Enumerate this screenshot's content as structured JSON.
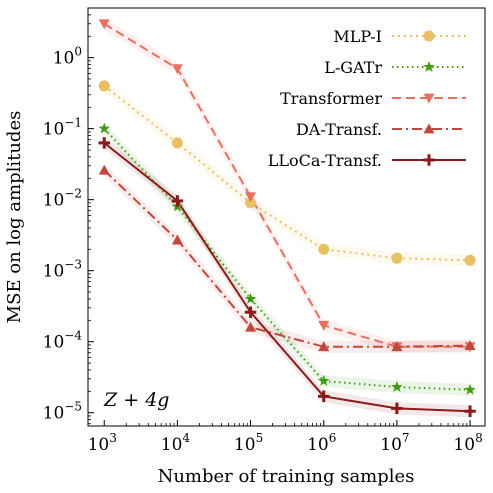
{
  "chart_data": {
    "type": "line",
    "xscale": "log",
    "yscale": "log",
    "x": [
      1000,
      10000,
      100000,
      1000000,
      10000000,
      100000000
    ],
    "x_ticks": [
      {
        "value": 1000,
        "base": "10",
        "exp": "3"
      },
      {
        "value": 10000,
        "base": "10",
        "exp": "4"
      },
      {
        "value": 100000,
        "base": "10",
        "exp": "5"
      },
      {
        "value": 1000000,
        "base": "10",
        "exp": "6"
      },
      {
        "value": 10000000,
        "base": "10",
        "exp": "7"
      },
      {
        "value": 100000000,
        "base": "10",
        "exp": "8"
      }
    ],
    "y_ticks": [
      {
        "value": 1,
        "base": "10",
        "exp": "0"
      },
      {
        "value": 0.1,
        "base": "10",
        "exp": "−1"
      },
      {
        "value": 0.01,
        "base": "10",
        "exp": "−2"
      },
      {
        "value": 0.001,
        "base": "10",
        "exp": "−3"
      },
      {
        "value": 0.0001,
        "base": "10",
        "exp": "−4"
      },
      {
        "value": 1e-05,
        "base": "10",
        "exp": "−5"
      }
    ],
    "xlim": [
      600,
      160000000
    ],
    "ylim": [
      6.5e-06,
      5
    ],
    "xlabel": "Number of training samples",
    "ylabel": "MSE on log amplitudes",
    "annotation": "Z + 4g",
    "legend_position": "top-right",
    "series": [
      {
        "name": "MLP-I",
        "color": "#e8c063",
        "dash": "2,4",
        "marker": "circle",
        "values": [
          0.4,
          0.063,
          0.009,
          0.002,
          0.0015,
          0.0014
        ]
      },
      {
        "name": "L-GATr",
        "color": "#3f9913",
        "dash": "1.5,3.5",
        "marker": "star",
        "values": [
          0.1,
          0.008,
          0.0004,
          2.8e-05,
          2.3e-05,
          2.1e-05
        ]
      },
      {
        "name": "Transformer",
        "color": "#e87060",
        "dash": "9,5",
        "marker": "triangle-down",
        "values": [
          3.0,
          0.7,
          0.011,
          0.00017,
          8.5e-05,
          8.5e-05
        ]
      },
      {
        "name": "DA-Transf.",
        "color": "#c0473d",
        "dash": "10,4,2,4",
        "marker": "triangle-up",
        "values": [
          0.026,
          0.0027,
          0.00016,
          8.5e-05,
          8.5e-05,
          8.8e-05
        ]
      },
      {
        "name": "LLoCa-Transf.",
        "color": "#8b1a1a",
        "dash": "",
        "marker": "plus",
        "values": [
          0.063,
          0.0096,
          0.00026,
          1.7e-05,
          1.15e-05,
          1.05e-05
        ]
      }
    ]
  }
}
